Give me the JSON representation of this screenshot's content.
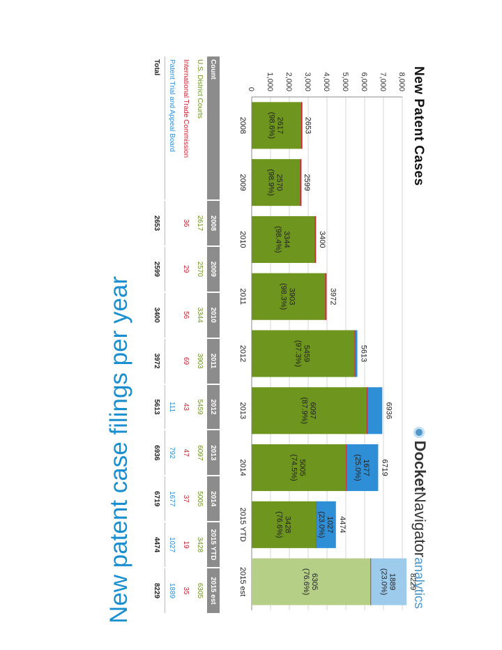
{
  "slide_title": "New patent case filings per year",
  "brand": {
    "part1": "Docket",
    "part2": "Navigator",
    "part3": "analytics",
    "logo": "docket-navigator-logo-icon"
  },
  "colors": {
    "district": "#6e951d",
    "district_est": "#b5cf87",
    "itc": "#cc2233",
    "ptab": "#2e8fd6",
    "ptab_est": "#9dcbec",
    "title": "#1a8fd0",
    "table_header": "#8c8c8c"
  },
  "chart_data": {
    "type": "bar",
    "stacked": true,
    "title": "New Patent Cases",
    "categories": [
      "2008",
      "2009",
      "2010",
      "2011",
      "2012",
      "2013",
      "2014",
      "2015 YTD",
      "2015 est"
    ],
    "ylim": [
      0,
      8000
    ],
    "yticks": [
      "0",
      "1,000",
      "2,000",
      "3,000",
      "4,000",
      "5,000",
      "6,000",
      "7,000",
      "8,000"
    ],
    "grid": true,
    "series": [
      {
        "name": "U.S. District Courts",
        "values": [
          2617,
          2570,
          3344,
          3903,
          5459,
          6097,
          5005,
          3428,
          6305
        ]
      },
      {
        "name": "International Trade Commission",
        "values": [
          36,
          29,
          56,
          69,
          43,
          47,
          37,
          19,
          35
        ]
      },
      {
        "name": "Patent Trial and Appeal Board",
        "values": [
          0,
          0,
          0,
          0,
          111,
          792,
          1677,
          1027,
          1889
        ]
      }
    ],
    "totals": [
      2653,
      2599,
      3400,
      3972,
      5613,
      6936,
      6719,
      4474,
      8229
    ],
    "district_labels": [
      "2617\n(98.6%)",
      "2570\n(98.9%)",
      "3344\n(98.4%)",
      "3903\n(98.3%)",
      "5459\n(97.3%)",
      "6097\n(87.9%)",
      "5005\n(74.5%)",
      "3428\n(76.6%)",
      "6305\n(76.6%)"
    ],
    "ptab_labels": [
      "",
      "",
      "",
      "",
      "",
      "",
      "1677\n(25.0%)",
      "1027\n(23.0%)",
      "1889\n(23.0%)"
    ]
  },
  "table": {
    "headers": [
      "Count",
      "2008",
      "2009",
      "2010",
      "2011",
      "2012",
      "2013",
      "2014",
      "2015 YTD",
      "2015 est"
    ],
    "rows": [
      {
        "label": "U.S. District Courts",
        "values": [
          "2617",
          "2570",
          "3344",
          "3903",
          "5459",
          "6097",
          "5005",
          "3428",
          "6305"
        ]
      },
      {
        "label": "International Trade Commission",
        "values": [
          "36",
          "29",
          "56",
          "69",
          "43",
          "47",
          "37",
          "19",
          "35"
        ]
      },
      {
        "label": "Patent Trial and Appeal Board",
        "values": [
          "",
          "",
          "",
          "",
          "111",
          "792",
          "1677",
          "1027",
          "1889"
        ]
      }
    ],
    "total": {
      "label": "Total",
      "values": [
        "2653",
        "2599",
        "3400",
        "3972",
        "5613",
        "6936",
        "6719",
        "4474",
        "8229"
      ]
    }
  }
}
